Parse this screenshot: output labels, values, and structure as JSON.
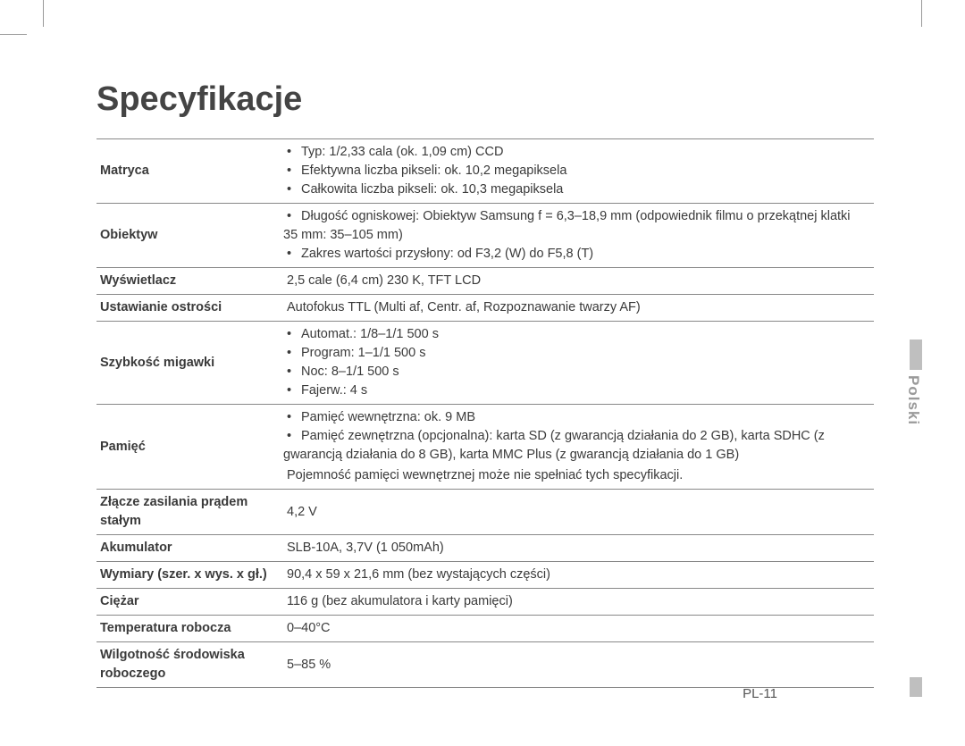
{
  "title": "Specyfikacje",
  "language_tab": "Polski",
  "page_number": "PL-11",
  "rows": [
    {
      "label": "Matryca",
      "type": "list",
      "items": [
        "Typ: 1/2,33 cala (ok. 1,09 cm) CCD",
        "Efektywna liczba pikseli: ok. 10,2 megapiksela",
        "Całkowita liczba pikseli: ok. 10,3 megapiksela"
      ]
    },
    {
      "label": "Obiektyw",
      "type": "list",
      "items": [
        "Długość ogniskowej: Obiektyw Samsung f = 6,3–18,9 mm (odpowiednik filmu o przekątnej klatki 35 mm: 35–105 mm)",
        "Zakres wartości przysłony: od F3,2 (W) do F5,8 (T)"
      ]
    },
    {
      "label": "Wyświetlacz",
      "type": "plain",
      "value": "2,5 cale (6,4 cm) 230 K, TFT LCD"
    },
    {
      "label": "Ustawianie ostrości",
      "type": "plain",
      "value": "Autofokus TTL (Multi af, Centr. af, Rozpoznawanie twarzy AF)"
    },
    {
      "label": "Szybkość migawki",
      "type": "list",
      "items": [
        "Automat.: 1/8–1/1 500 s",
        "Program: 1–1/1 500 s",
        "Noc: 8–1/1 500 s",
        "Fajerw.: 4 s"
      ]
    },
    {
      "label": "Pamięć",
      "type": "list_note",
      "items": [
        "Pamięć wewnętrzna: ok. 9 MB",
        "Pamięć zewnętrzna (opcjonalna): karta SD (z gwarancją działania do 2 GB), karta SDHC (z gwarancją działania do 8 GB), karta MMC Plus (z gwarancją działania do 1 GB)"
      ],
      "note": "Pojemność pamięci wewnętrznej może nie spełniać tych specyfikacji."
    },
    {
      "label": "Złącze zasilania prądem stałym",
      "type": "plain",
      "value": "4,2 V"
    },
    {
      "label": "Akumulator",
      "type": "plain",
      "value": "SLB-10A, 3,7V (1 050mAh)"
    },
    {
      "label": "Wymiary (szer. x wys. x gł.)",
      "type": "plain",
      "value": "90,4 x 59 x 21,6 mm (bez wystających części)"
    },
    {
      "label": "Ciężar",
      "type": "plain",
      "value": "116 g (bez akumulatora i karty pamięci)"
    },
    {
      "label": "Temperatura robocza",
      "type": "plain",
      "value": "0–40°C"
    },
    {
      "label": "Wilgotność środowiska roboczego",
      "type": "plain",
      "value": "5–85 %"
    }
  ]
}
